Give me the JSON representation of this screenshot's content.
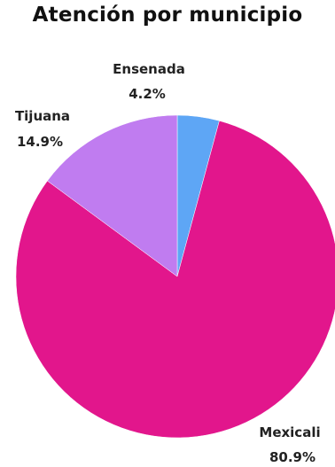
{
  "chart_data": {
    "type": "pie",
    "title": "Atención por municipio",
    "slices": [
      {
        "label": "Ensenada",
        "value_text": "4.2%",
        "value": 4.2,
        "color": "#5ea6f5"
      },
      {
        "label": "Mexicali",
        "value_text": "80.9%",
        "value": 80.9,
        "color": "#e2168c"
      },
      {
        "label": "Tijuana",
        "value_text": "14.9%",
        "value": 14.9,
        "color": "#c07cf0"
      }
    ],
    "start": "12 o'clock",
    "direction": "clockwise"
  }
}
